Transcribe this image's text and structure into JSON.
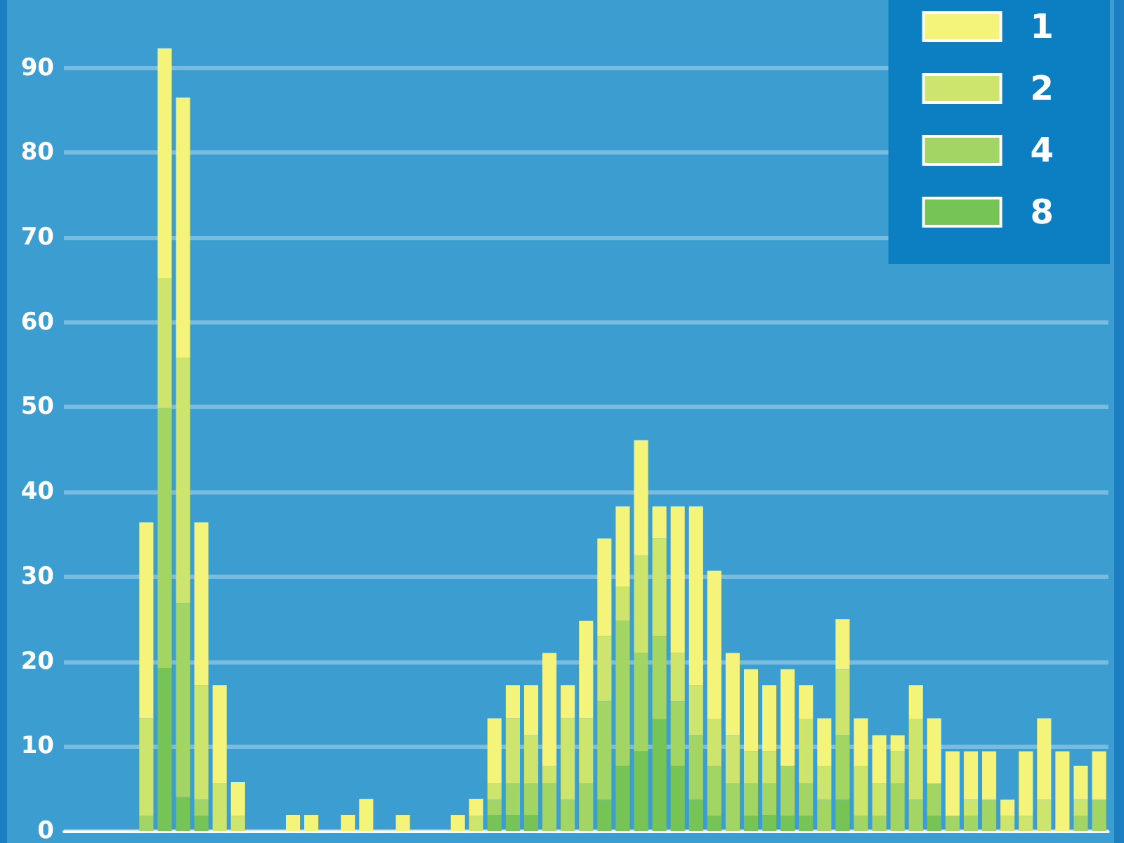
{
  "chart_data": {
    "type": "bar",
    "stacked": true,
    "categories": [
      null,
      null,
      null,
      null,
      null,
      null,
      null,
      null,
      null,
      null,
      null,
      null,
      null,
      null,
      null,
      null,
      null,
      null,
      null,
      null,
      null,
      null,
      null,
      null,
      null,
      null,
      null,
      null,
      null,
      null,
      null,
      null,
      null,
      null,
      null,
      null,
      null,
      null,
      null,
      null,
      null,
      null,
      null,
      null,
      null,
      null,
      null,
      null,
      null,
      null,
      null,
      null,
      null,
      null,
      null,
      null,
      null
    ],
    "series": [
      {
        "name": "8",
        "color": "#76c456",
        "values": [
          0,
          0,
          0,
          0,
          0,
          19.2,
          4,
          1.8,
          0,
          0,
          0,
          0,
          0,
          0,
          0,
          0,
          0,
          0,
          0,
          0,
          0,
          0,
          0,
          1.9,
          1.9,
          1.9,
          0,
          0,
          0,
          3.7,
          7.7,
          9.4,
          13.2,
          7.7,
          3.7,
          1.8,
          0,
          1.8,
          1.9,
          1.8,
          1.8,
          0,
          3.7,
          0,
          0,
          0,
          0,
          1.8,
          0,
          0,
          0,
          0,
          0,
          0,
          0,
          0,
          0
        ]
      },
      {
        "name": "4",
        "color": "#a3d564",
        "values": [
          0,
          0,
          0,
          0,
          1.8,
          30.7,
          22.9,
          1.9,
          0,
          0,
          0,
          0,
          0,
          0,
          0,
          0,
          0,
          0,
          0,
          0,
          0,
          0,
          0,
          1.8,
          3.7,
          3.7,
          5.6,
          3.7,
          5.6,
          11.6,
          17.1,
          11.6,
          9.8,
          7.6,
          7.6,
          5.9,
          5.6,
          3.8,
          3.7,
          5.9,
          3.8,
          3.7,
          7.6,
          1.8,
          1.8,
          5.6,
          3.7,
          3.8,
          1.8,
          1.8,
          3.7,
          0,
          0,
          0,
          0,
          1.8,
          3.7
        ]
      },
      {
        "name": "2",
        "color": "#cde46d",
        "values": [
          0,
          0,
          0,
          0,
          11.5,
          15.3,
          28.9,
          13.5,
          5.6,
          1.8,
          0,
          0,
          0,
          0,
          0,
          0,
          0,
          0,
          0,
          0,
          0,
          0,
          1.8,
          1.9,
          7.7,
          5.7,
          2.1,
          9.6,
          7.7,
          7.7,
          4,
          11.5,
          11.5,
          5.7,
          5.9,
          5.5,
          5.7,
          3.8,
          3.8,
          0,
          7.6,
          4,
          7.8,
          5.9,
          3.8,
          3.8,
          9.5,
          0,
          0,
          1.9,
          0,
          1.8,
          1.8,
          3.7,
          0,
          1.9,
          0
        ]
      },
      {
        "name": "1",
        "color": "#f4f47a",
        "values": [
          0,
          0,
          0,
          0,
          23.1,
          27.1,
          30.7,
          19.2,
          11.6,
          4,
          0,
          0,
          1.9,
          1.9,
          0,
          1.9,
          3.8,
          0,
          1.9,
          0,
          0,
          1.9,
          2,
          7.7,
          3.9,
          5.9,
          13.3,
          3.9,
          11.5,
          11.5,
          9.5,
          13.6,
          3.8,
          17.3,
          21.1,
          17.5,
          9.7,
          9.7,
          7.8,
          11.4,
          4,
          5.6,
          5.9,
          5.6,
          5.7,
          1.9,
          4,
          7.7,
          7.6,
          5.7,
          5.7,
          1.9,
          7.6,
          9.6,
          9.4,
          4,
          5.7
        ]
      }
    ],
    "ylim": [
      0,
      98
    ],
    "yticks": [
      0,
      10,
      20,
      30,
      40,
      50,
      60,
      70,
      80,
      90
    ],
    "grid": "y",
    "legend": "top right",
    "tick_labels": "y"
  }
}
